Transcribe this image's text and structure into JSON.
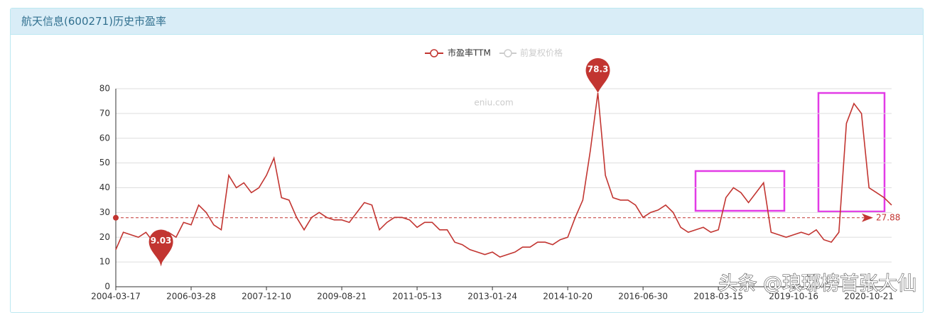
{
  "chart_data": {
    "type": "line",
    "title": "航天信息(600271)历史市盈率",
    "watermark": "eniu.com",
    "footer_watermark": "头条 @琅琊榜首张大仙",
    "categories": [
      "2004-03-17",
      null,
      null,
      null,
      null,
      null,
      null,
      null,
      null,
      null,
      "2006-03-28",
      null,
      null,
      null,
      null,
      null,
      null,
      null,
      null,
      null,
      "2007-12-10",
      null,
      null,
      null,
      null,
      null,
      null,
      null,
      null,
      null,
      "2009-08-21",
      null,
      null,
      null,
      null,
      null,
      null,
      null,
      null,
      null,
      "2011-05-13",
      null,
      null,
      null,
      null,
      null,
      null,
      null,
      null,
      null,
      "2013-01-24",
      null,
      null,
      null,
      null,
      null,
      null,
      null,
      null,
      null,
      "2014-10-20",
      null,
      null,
      null,
      null,
      null,
      null,
      null,
      null,
      null,
      "2016-06-30",
      null,
      null,
      null,
      null,
      null,
      null,
      null,
      null,
      null,
      "2018-03-15",
      null,
      null,
      null,
      null,
      null,
      null,
      null,
      null,
      null,
      "2019-10-16",
      null,
      null,
      null,
      null,
      null,
      null,
      null,
      null,
      null,
      "2020-10-21",
      null,
      null,
      null
    ],
    "series": [
      {
        "name": "市盈率TTM",
        "color": "#c23531",
        "values": [
          15,
          22,
          21,
          20,
          22,
          18,
          9.03,
          22,
          20,
          26,
          25,
          33,
          30,
          25,
          23,
          45,
          40,
          42,
          38,
          40,
          45,
          52,
          36,
          35,
          28,
          23,
          28,
          30,
          28,
          27,
          27,
          26,
          30,
          34,
          33,
          23,
          26,
          28,
          28,
          27,
          24,
          26,
          26,
          23,
          23,
          18,
          17,
          15,
          14,
          13,
          14,
          12,
          13,
          14,
          16,
          16,
          18,
          18,
          17,
          19,
          20,
          28,
          35,
          55,
          78.3,
          45,
          36,
          35,
          35,
          33,
          28,
          30,
          31,
          33,
          30,
          24,
          22,
          23,
          24,
          22,
          23,
          36,
          40,
          38,
          34,
          38,
          42,
          22,
          21,
          20,
          21,
          22,
          21,
          23,
          19,
          18,
          22,
          66,
          74,
          70,
          40,
          38,
          36,
          33
        ]
      }
    ],
    "legend_inactive": [
      "前复权价格"
    ],
    "average": 27.88,
    "ylim": [
      0,
      80
    ],
    "yticks": [
      0,
      10,
      20,
      30,
      40,
      50,
      60,
      70,
      80
    ],
    "grid": true
  }
}
